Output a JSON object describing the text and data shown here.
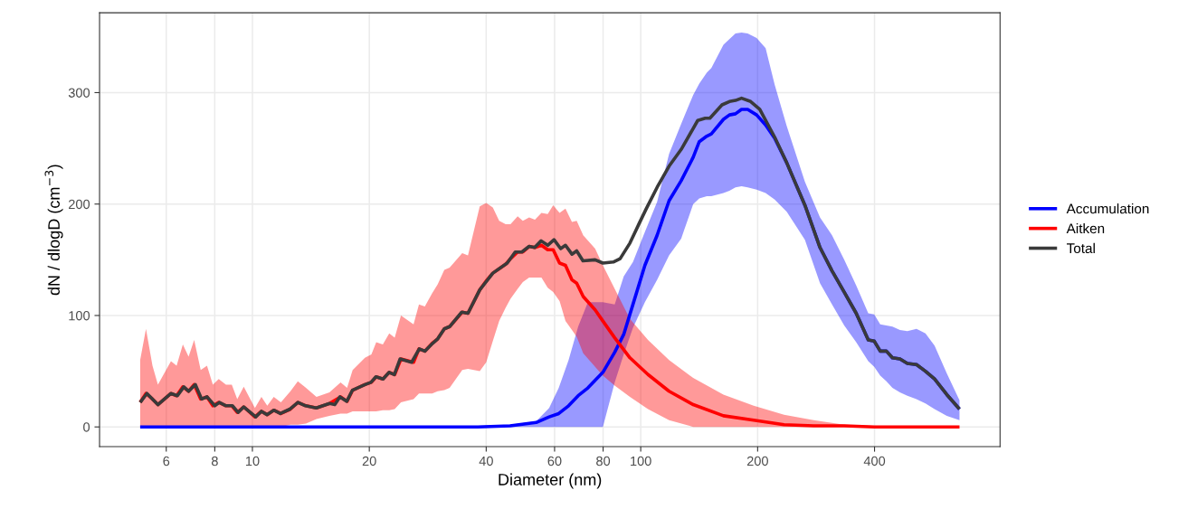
{
  "chart_data": {
    "type": "line",
    "xlabel": "Diameter (nm)",
    "ylabel": "dN / dlogD (cm$^{−3}$)",
    "log": "x",
    "xlim": [
      4.04,
      842
    ],
    "ylim": [
      -17.7,
      371.7
    ],
    "xticks": [
      6,
      8,
      10,
      20,
      40,
      60,
      80,
      100,
      200,
      400
    ],
    "yticks": [
      0,
      100,
      200,
      300
    ],
    "grid": true,
    "legend": "right",
    "line_style": "solid",
    "marker": "none",
    "series": [
      {
        "name": "Accumulation",
        "color": "#0000ff",
        "x": [
          5.14,
          10,
          20,
          30,
          38.1,
          46.1,
          53.8,
          58.1,
          61.5,
          65.2,
          69.0,
          73.1,
          79.9,
          85.7,
          90.4,
          95.5,
          102.5,
          110.2,
          118.3,
          127.1,
          136.5,
          141.5,
          148,
          152,
          163.3,
          169.2,
          175.4,
          181.8,
          188.5,
          198.8,
          209.7,
          221.3,
          237.7,
          264.7,
          289.5,
          310.9,
          334.2,
          358.8,
          385.4,
          399.3,
          413.8,
          429.2,
          444.8,
          465,
          486,
          513,
          541,
          571,
          614,
          662
        ],
        "values": [
          0,
          0,
          0,
          0,
          0,
          1,
          4,
          9,
          12,
          19,
          28,
          35,
          49,
          67,
          83,
          110,
          145,
          172,
          203,
          221,
          242,
          256,
          261,
          263,
          276,
          280,
          281,
          285,
          285,
          280,
          271,
          259,
          237,
          199,
          161,
          140,
          121,
          102,
          78,
          77,
          68,
          68,
          62,
          61,
          57,
          56,
          50,
          43,
          29,
          16
        ],
        "lower": [
          0,
          0,
          0,
          0,
          0,
          0,
          0,
          0,
          0,
          0,
          0,
          0,
          0,
          40,
          65,
          89,
          112,
          132,
          154,
          169,
          200,
          205,
          207,
          207,
          210,
          212,
          215,
          216,
          215,
          213,
          210,
          204,
          193,
          168,
          129,
          110,
          91,
          76,
          59,
          54,
          46,
          41,
          35,
          31,
          28,
          25,
          21,
          16,
          10,
          6
        ],
        "upper": [
          0,
          0,
          0,
          0,
          1,
          2,
          5,
          17,
          35,
          60,
          90,
          112,
          112,
          110,
          135,
          148,
          175,
          202,
          245,
          272,
          298,
          308,
          318,
          322,
          343,
          348,
          353,
          354,
          353,
          349,
          340,
          307,
          270,
          220,
          188,
          172,
          150,
          127,
          102,
          101,
          92,
          91,
          90,
          87,
          86,
          88,
          84,
          73,
          48,
          24
        ]
      },
      {
        "name": "Aitken",
        "color": "#ff0000",
        "x": [
          5.14,
          5.32,
          5.53,
          5.71,
          6.17,
          6.38,
          6.62,
          6.85,
          7.08,
          7.36,
          7.64,
          7.91,
          8.19,
          8.55,
          8.85,
          9.14,
          9.5,
          10.15,
          10.55,
          10.92,
          11.35,
          11.84,
          12.53,
          13.09,
          13.74,
          14.62,
          15.79,
          16.87,
          17.53,
          18.12,
          19.48,
          20.25,
          20.84,
          21.67,
          22.51,
          23.25,
          24.13,
          26.0,
          26.85,
          27.8,
          29.04,
          30.0,
          31.2,
          32.2,
          34.7,
          35.9,
          38.5,
          40.0,
          41.6,
          43.2,
          44.9,
          46.2,
          48.2,
          49.7,
          51.6,
          53.4,
          55.5,
          57.6,
          59.5,
          61.8,
          64.0,
          66.5,
          68.4,
          71.1,
          76.3,
          79.9,
          85.7,
          93.8,
          104.4,
          118.3,
          136.5,
          163.3,
          195.4,
          233.9,
          279,
          334.2,
          399.3,
          522,
          662
        ],
        "values": [
          22,
          30,
          25,
          20,
          30,
          28,
          36,
          32,
          38,
          25,
          27,
          19,
          22,
          19,
          19,
          13,
          18,
          9,
          14,
          11,
          15,
          12,
          16,
          22,
          19,
          17,
          21,
          27,
          23,
          33,
          38,
          40,
          45,
          43,
          49,
          47,
          61,
          58,
          70,
          68,
          75,
          79,
          88,
          90,
          103,
          102,
          123,
          131,
          138,
          142,
          146,
          151,
          157,
          157,
          162,
          161,
          163,
          159,
          159,
          147,
          145,
          132,
          129,
          117,
          105,
          95,
          80,
          62,
          47,
          32,
          20,
          10,
          6,
          2,
          1,
          1,
          0,
          0,
          0
        ],
        "lower": [
          0,
          0,
          0,
          0,
          0,
          0,
          0,
          0,
          0,
          0,
          0,
          0,
          0,
          0,
          0,
          0,
          0,
          0,
          0,
          0,
          0,
          0,
          2,
          2,
          3,
          7,
          10,
          12,
          12,
          14,
          14,
          14,
          14,
          15,
          15,
          16,
          22,
          25,
          30,
          30,
          30,
          32,
          33,
          35,
          51,
          52,
          50,
          58,
          77,
          95,
          107,
          115,
          124,
          130,
          134,
          134,
          134,
          125,
          121,
          113,
          95,
          87,
          81,
          66,
          54,
          46,
          37,
          27,
          16,
          6,
          0,
          0,
          0,
          0,
          0,
          0,
          0,
          0,
          0
        ],
        "upper": [
          60,
          88,
          55,
          38,
          59,
          55,
          74,
          63,
          78,
          51,
          55,
          38,
          43,
          38,
          38,
          25,
          36,
          17,
          27,
          19,
          27,
          22,
          32,
          41,
          35,
          27,
          31,
          40,
          35,
          51,
          62,
          65,
          76,
          74,
          84,
          80,
          100,
          92,
          110,
          108,
          120,
          128,
          141,
          143,
          156,
          154,
          198,
          201,
          197,
          185,
          182,
          182,
          189,
          185,
          188,
          186,
          192,
          191,
          199,
          192,
          196,
          184,
          185,
          172,
          160,
          145,
          124,
          97,
          78,
          60,
          44,
          29,
          19,
          11,
          6,
          2,
          1,
          0,
          0
        ]
      },
      {
        "name": "Total",
        "color": "#3a3a3a",
        "x": [
          5.14,
          5.35,
          5.71,
          6.17,
          6.41,
          6.66,
          6.85,
          7.13,
          7.4,
          7.64,
          8.0,
          8.22,
          8.55,
          8.88,
          9.19,
          9.5,
          10.2,
          10.55,
          10.9,
          11.35,
          11.8,
          12.5,
          13.1,
          13.7,
          14.6,
          15.8,
          16.3,
          16.8,
          17.5,
          18.1,
          19.5,
          20.2,
          20.8,
          21.7,
          22.5,
          23.2,
          24.0,
          25.7,
          26.9,
          27.8,
          29.1,
          30.0,
          31.2,
          32.2,
          34.6,
          35.9,
          38.5,
          41.6,
          45.3,
          47.5,
          49.4,
          51.6,
          53.3,
          55.4,
          57.6,
          59.8,
          62.2,
          64.0,
          66.5,
          68.4,
          71.0,
          76.3,
          79.9,
          85.0,
          88.5,
          93.8,
          98.9,
          103.4,
          110.2,
          118.3,
          127.1,
          140.2,
          146.6,
          150.7,
          161.9,
          169.2,
          175.4,
          181.8,
          191.9,
          202.5,
          221.3,
          237.7,
          264.7,
          289.5,
          310.9,
          334.2,
          358.8,
          385.4,
          399.3,
          413.8,
          429.2,
          444.8,
          465,
          486,
          513,
          541,
          571,
          614,
          662
        ],
        "values": [
          22,
          30,
          20,
          30,
          28,
          36,
          32,
          38,
          25,
          27,
          19,
          22,
          19,
          19,
          13,
          18,
          9,
          14,
          11,
          15,
          12,
          16,
          22,
          19,
          17,
          21,
          20,
          27,
          23,
          33,
          38,
          40,
          45,
          43,
          49,
          47,
          61,
          58,
          70,
          68,
          75,
          79,
          88,
          90,
          103,
          102,
          123,
          138,
          147,
          157,
          157,
          162,
          161,
          167,
          163,
          168,
          160,
          163,
          155,
          158,
          149,
          150,
          147,
          148,
          151,
          165,
          182,
          196,
          215,
          234,
          249,
          275,
          277,
          277,
          289,
          292,
          293,
          295,
          292,
          285,
          260,
          237,
          199,
          161,
          140,
          121,
          102,
          78,
          77,
          68,
          68,
          62,
          61,
          57,
          56,
          50,
          43,
          29,
          16
        ]
      }
    ]
  }
}
